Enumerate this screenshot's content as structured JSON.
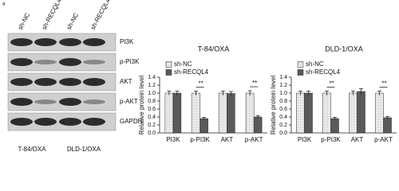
{
  "panel_label": "a",
  "blot": {
    "lanes": [
      "sh-NC",
      "sh-RECQL4",
      "sh-NC",
      "sh-RECQL4"
    ],
    "proteins": [
      "PI3K",
      "p-PI3K",
      "AKT",
      "p-AKT",
      "GAPDH"
    ],
    "groups": [
      "T-84/OXA",
      "DLD-1/OXA"
    ]
  },
  "chart_data": [
    {
      "type": "bar",
      "title": "T-84/OXA",
      "y_label": "Relative protein level",
      "categories": [
        "PI3K",
        "p-PI3K",
        "AKT",
        "p-AKT"
      ],
      "series": [
        {
          "name": "sh-NC",
          "color": "#dcdcdc",
          "values": [
            1.0,
            1.0,
            1.0,
            1.0
          ],
          "errors": [
            0.05,
            0.05,
            0.05,
            0.06
          ]
        },
        {
          "name": "sh-RECQL4",
          "color": "#5a5a5a",
          "values": [
            1.0,
            0.36,
            0.99,
            0.4
          ],
          "errors": [
            0.05,
            0.03,
            0.05,
            0.03
          ]
        }
      ],
      "significance_labels": [
        null,
        "**",
        null,
        "**"
      ],
      "ylim": [
        0,
        1.4
      ],
      "yticks": [
        {
          "value": 0,
          "label": "0.0"
        },
        {
          "value": 0.2,
          "label": "0.2"
        },
        {
          "value": 0.4,
          "label": "0.4"
        },
        {
          "value": 0.6,
          "label": "0.6"
        },
        {
          "value": 0.8,
          "label": "0.8"
        },
        {
          "value": 1,
          "label": "1.0"
        },
        {
          "value": 1.2,
          "label": "1.2"
        },
        {
          "value": 1.4,
          "label": "1.4"
        }
      ]
    },
    {
      "type": "bar",
      "title": "DLD-1/OXA",
      "y_label": "Relative protein level",
      "categories": [
        "PI3K",
        "p-PI3K",
        "AKT",
        "p-AKT"
      ],
      "series": [
        {
          "name": "sh-NC",
          "color": "#dcdcdc",
          "values": [
            1.0,
            1.0,
            1.0,
            1.0
          ],
          "errors": [
            0.05,
            0.05,
            0.05,
            0.05
          ]
        },
        {
          "name": "sh-RECQL4",
          "color": "#5a5a5a",
          "values": [
            1.0,
            0.36,
            1.04,
            0.38
          ],
          "errors": [
            0.05,
            0.03,
            0.07,
            0.03
          ]
        }
      ],
      "significance_labels": [
        null,
        "**",
        null,
        "**"
      ],
      "ylim": [
        0,
        1.4
      ],
      "yticks": [
        {
          "value": 0,
          "label": "0.0"
        },
        {
          "value": 0.2,
          "label": "0.2"
        },
        {
          "value": 0.4,
          "label": "0.4"
        },
        {
          "value": 0.6,
          "label": "0.6"
        },
        {
          "value": 0.8,
          "label": "0.8"
        },
        {
          "value": 1,
          "label": "1.0"
        },
        {
          "value": 1.2,
          "label": "1.2"
        },
        {
          "value": 1.4,
          "label": "1.4"
        }
      ]
    }
  ]
}
